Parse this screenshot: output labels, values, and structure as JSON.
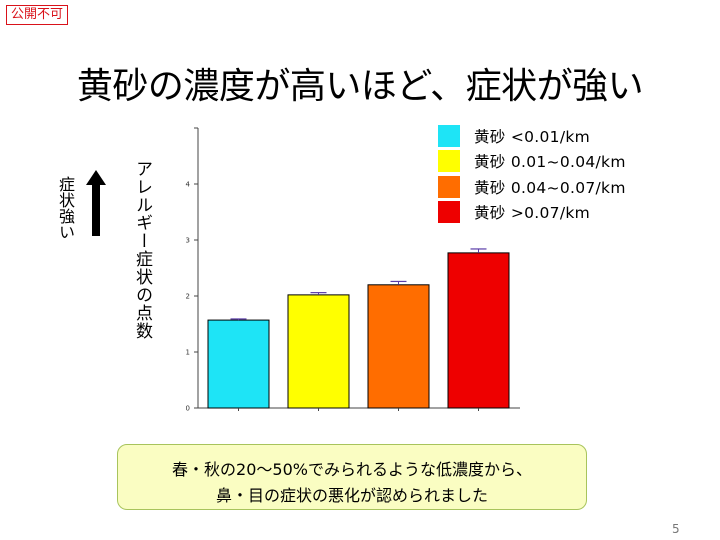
{
  "stamp": "公開不可",
  "title": "黄砂の濃度が高いほど、症状が強い",
  "side_label": "症状強い",
  "chart_data": {
    "type": "bar",
    "ylabel": "アレルギー症状の点数",
    "xlabel": "",
    "ylim": [
      0,
      5
    ],
    "yticks": [
      0,
      1,
      2,
      3,
      4
    ],
    "categories": [
      "黄砂 <0.01/km",
      "黄砂 0.01~0.04/km",
      "黄砂 0.04~0.07/km",
      "黄砂 >0.07/km"
    ],
    "values": [
      1.57,
      2.02,
      2.2,
      2.77
    ],
    "errors": [
      0.02,
      0.04,
      0.06,
      0.07
    ],
    "colors": [
      "#1ee4f6",
      "#ffff00",
      "#ff6d00",
      "#ee0000"
    ],
    "grid": false
  },
  "legend": [
    {
      "label": "黄砂 <0.01/km",
      "color": "#1ee4f6"
    },
    {
      "label": "黄砂 0.01~0.04/km",
      "color": "#ffff00"
    },
    {
      "label": "黄砂 0.04~0.07/km",
      "color": "#ff6d00"
    },
    {
      "label": "黄砂 >0.07/km",
      "color": "#ee0000"
    }
  ],
  "note": {
    "line1": "春・秋の20～50%でみられるような低濃度から、",
    "line2": "鼻・目の症状の悪化が認められました"
  },
  "page_number": "5"
}
